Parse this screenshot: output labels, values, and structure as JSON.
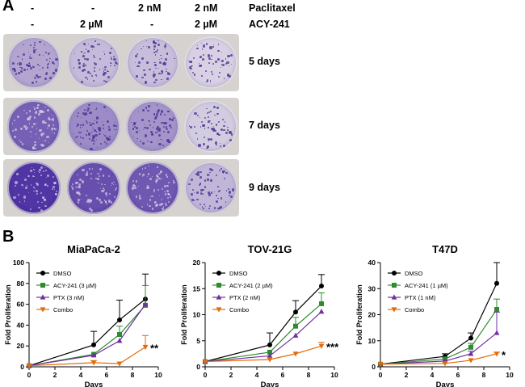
{
  "panel_a": {
    "letter": "A",
    "paclitaxel_row": [
      "-",
      "-",
      "2 nM",
      "2 nM"
    ],
    "paclitaxel_label": "Paclitaxel",
    "acy_row": [
      "-",
      "2 µM",
      "-",
      "2 µM"
    ],
    "acy_label": "ACY-241",
    "plates": [
      {
        "label": "5 days",
        "densities": [
          0.3,
          0.18,
          0.16,
          0.05
        ]
      },
      {
        "label": "7 days",
        "densities": [
          0.7,
          0.45,
          0.4,
          0.08
        ]
      },
      {
        "label": "9 days",
        "densities": [
          0.95,
          0.8,
          0.75,
          0.2
        ]
      }
    ]
  },
  "panel_b": {
    "letter": "B"
  },
  "chart_data": [
    {
      "type": "line",
      "title": "MiaPaCa-2",
      "xlabel": "Days",
      "ylabel": "Fold Proliferation",
      "xlim": [
        0,
        10
      ],
      "ylim": [
        0,
        100
      ],
      "xticks": [
        0,
        2,
        4,
        6,
        8,
        10
      ],
      "yticks": [
        0,
        20,
        40,
        60,
        80,
        100
      ],
      "x": [
        0,
        5,
        7,
        9
      ],
      "legend": "top-left",
      "significance": "**",
      "series": [
        {
          "name": "DMSO",
          "color": "#000000",
          "marker": "circle",
          "values": [
            1,
            21,
            45,
            65
          ],
          "err": [
            0,
            13,
            19,
            24
          ]
        },
        {
          "name": "ACY-241 (3 µM)",
          "color": "#2e8b2e",
          "marker": "square",
          "values": [
            1,
            12,
            31,
            59
          ],
          "err": [
            0,
            0,
            8,
            19
          ]
        },
        {
          "name": "PTX (3 nM)",
          "color": "#7030a0",
          "marker": "triangle-up",
          "values": [
            1,
            11,
            25,
            60
          ],
          "err": [
            0,
            0,
            0,
            0
          ]
        },
        {
          "name": "Combo",
          "color": "#e36c09",
          "marker": "triangle-down",
          "values": [
            1,
            4,
            3,
            19
          ],
          "err": [
            0,
            2,
            0,
            11
          ]
        }
      ]
    },
    {
      "type": "line",
      "title": "TOV-21G",
      "xlabel": "Days",
      "ylabel": "Fold Proliferation",
      "xlim": [
        0,
        10
      ],
      "ylim": [
        0,
        20
      ],
      "xticks": [
        0,
        2,
        4,
        6,
        8,
        10
      ],
      "yticks": [
        0,
        5,
        10,
        15,
        20
      ],
      "x": [
        0,
        5,
        7,
        9
      ],
      "legend": "top-left",
      "significance": "***",
      "series": [
        {
          "name": "DMSO",
          "color": "#000000",
          "marker": "circle",
          "values": [
            1,
            4.2,
            10.5,
            15.5
          ],
          "err": [
            0,
            2.3,
            2.2,
            2.2
          ]
        },
        {
          "name": "ACY-241 (2 µM)",
          "color": "#2e8b2e",
          "marker": "square",
          "values": [
            1,
            2.8,
            7.8,
            12.1
          ],
          "err": [
            0,
            0,
            1.7,
            2.1
          ]
        },
        {
          "name": "PTX (2 nM)",
          "color": "#7030a0",
          "marker": "triangle-up",
          "values": [
            1,
            2.1,
            6.0,
            10.6
          ],
          "err": [
            0,
            0,
            0,
            0
          ]
        },
        {
          "name": "Combo",
          "color": "#e36c09",
          "marker": "triangle-down",
          "values": [
            1,
            1.4,
            2.5,
            4.0
          ],
          "err": [
            0,
            0,
            0,
            0.7
          ]
        }
      ]
    },
    {
      "type": "line",
      "title": "T47D",
      "xlabel": "Days",
      "ylabel": "Fold Proliferation",
      "xlim": [
        0,
        10
      ],
      "ylim": [
        0,
        40
      ],
      "xticks": [
        0,
        2,
        4,
        6,
        8,
        10
      ],
      "yticks": [
        0,
        10,
        20,
        30,
        40
      ],
      "x": [
        0,
        5,
        7,
        9
      ],
      "legend": "top-left",
      "significance": "*",
      "series": [
        {
          "name": "DMSO",
          "color": "#000000",
          "marker": "circle",
          "values": [
            1,
            4,
            11,
            32
          ],
          "err": [
            0,
            1,
            2,
            8
          ]
        },
        {
          "name": "ACY-241 (1 µM)",
          "color": "#2e8b2e",
          "marker": "square",
          "values": [
            1,
            3,
            7.5,
            22
          ],
          "err": [
            0,
            0.5,
            1.5,
            4
          ]
        },
        {
          "name": "PTX (1 nM)",
          "color": "#7030a0",
          "marker": "triangle-up",
          "values": [
            1,
            2.2,
            5,
            13
          ],
          "err": [
            0,
            0,
            1,
            8
          ]
        },
        {
          "name": "Combo",
          "color": "#e36c09",
          "marker": "triangle-down",
          "values": [
            1,
            1.3,
            2.5,
            5
          ],
          "err": [
            0,
            0,
            0,
            0.6
          ]
        }
      ]
    }
  ]
}
